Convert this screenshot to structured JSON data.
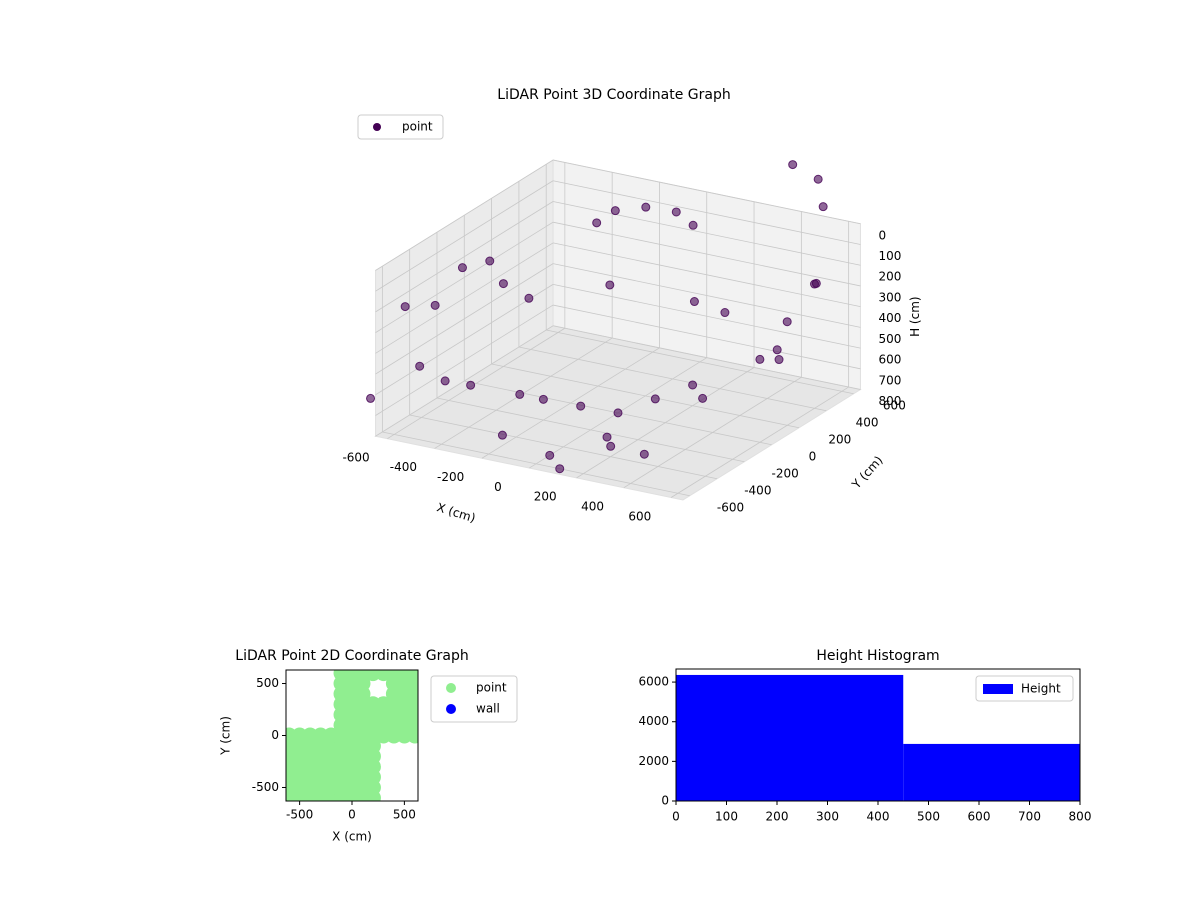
{
  "chart_data": [
    {
      "type": "scatter3d",
      "title": "LiDAR Point 3D Coordinate Graph",
      "xlabel": "X (cm)",
      "ylabel": "Y (cm)",
      "zlabel": "H (cm)",
      "xlim": [
        -650,
        650
      ],
      "ylim": [
        -650,
        650
      ],
      "zlim": [
        800,
        0
      ],
      "xticks": [
        -600,
        -400,
        -200,
        0,
        200,
        400,
        600
      ],
      "yticks": [
        -600,
        -400,
        -200,
        0,
        200,
        400,
        600
      ],
      "zticks": [
        0,
        100,
        200,
        300,
        400,
        500,
        600,
        700,
        800
      ],
      "legend": "upper left",
      "series": [
        {
          "name": "point",
          "color": "#440154",
          "x": [
            -600,
            -600,
            -600,
            -550,
            -500,
            -450,
            -600,
            -550,
            600,
            600,
            550,
            500,
            600,
            450,
            0,
            -100,
            100,
            -200,
            200,
            -300,
            300,
            -300,
            -200,
            -100,
            -350,
            0,
            300,
            400,
            100,
            0,
            200,
            -200,
            500,
            550,
            450,
            -900,
            -700,
            150,
            250,
            -150
          ],
          "y": [
            -300,
            -100,
            100,
            -500,
            -400,
            -300,
            200,
            300,
            400,
            200,
            500,
            300,
            0,
            400,
            0,
            -100,
            100,
            -200,
            200,
            -200,
            100,
            500,
            550,
            600,
            450,
            550,
            -600,
            -500,
            -600,
            -500,
            -400,
            -500,
            600,
            550,
            500,
            0,
            -600,
            300,
            350,
            200
          ],
          "z": [
            300,
            200,
            250,
            500,
            600,
            650,
            400,
            500,
            200,
            300,
            250,
            500,
            400,
            600,
            800,
            750,
            750,
            700,
            700,
            700,
            700,
            100,
            80,
            100,
            150,
            120,
            600,
            700,
            800,
            800,
            750,
            750,
            -200,
            -100,
            -300,
            500,
            650,
            350,
            400,
            300
          ]
        }
      ]
    },
    {
      "type": "scatter",
      "title": "LiDAR Point 2D Coordinate Graph",
      "xlabel": "X (cm)",
      "ylabel": "Y (cm)",
      "xlim": [
        -630,
        630
      ],
      "ylim": [
        -630,
        630
      ],
      "xticks": [
        -500,
        0,
        500
      ],
      "yticks": [
        -500,
        0,
        500
      ],
      "legend": "outside right",
      "series": [
        {
          "name": "point",
          "color": "#90ee90",
          "x": [
            -600,
            -500,
            -400,
            -300,
            -200,
            -100,
            0,
            100,
            200,
            -600,
            -500,
            -400,
            -300,
            -200,
            -100,
            0,
            100,
            200,
            -600,
            -500,
            -400,
            -300,
            -200,
            -100,
            0,
            100,
            200,
            -600,
            -500,
            -400,
            -300,
            -200,
            -100,
            0,
            100,
            200,
            -600,
            -500,
            -400,
            -300,
            -200,
            -100,
            0,
            100,
            200,
            -600,
            -500,
            -400,
            -300,
            -200,
            -100,
            0,
            100,
            200,
            -600,
            -500,
            -400,
            -300,
            -200,
            -100,
            0,
            100,
            200,
            300,
            400,
            500,
            600,
            -100,
            0,
            100,
            200,
            300,
            400,
            500,
            600,
            -100,
            0,
            100,
            200,
            300,
            400,
            500,
            600,
            -100,
            0,
            100,
            200,
            300,
            400,
            500,
            600,
            -100,
            0,
            100,
            400,
            500,
            600,
            -100,
            0,
            100,
            400,
            500,
            600,
            -100,
            0,
            100,
            200,
            300,
            400,
            500,
            600
          ],
          "y": [
            -600,
            -600,
            -600,
            -600,
            -600,
            -600,
            -600,
            -600,
            -600,
            -500,
            -500,
            -500,
            -500,
            -500,
            -500,
            -500,
            -500,
            -500,
            -400,
            -400,
            -400,
            -400,
            -400,
            -400,
            -400,
            -400,
            -400,
            -300,
            -300,
            -300,
            -300,
            -300,
            -300,
            -300,
            -300,
            -300,
            -200,
            -200,
            -200,
            -200,
            -200,
            -200,
            -200,
            -200,
            -200,
            -100,
            -100,
            -100,
            -100,
            -100,
            -100,
            -100,
            -100,
            -100,
            0,
            0,
            0,
            0,
            0,
            0,
            0,
            0,
            0,
            0,
            0,
            0,
            0,
            100,
            100,
            100,
            100,
            100,
            100,
            100,
            100,
            200,
            200,
            200,
            200,
            200,
            200,
            200,
            200,
            300,
            300,
            300,
            300,
            300,
            300,
            300,
            300,
            400,
            400,
            400,
            400,
            400,
            400,
            500,
            500,
            500,
            500,
            500,
            500,
            600,
            600,
            600,
            600,
            600,
            600,
            600,
            600
          ]
        },
        {
          "name": "wall",
          "color": "#0000ff",
          "x": [],
          "y": []
        }
      ]
    },
    {
      "type": "histogram",
      "title": "Height Histogram",
      "bins": [
        0,
        450,
        800
      ],
      "xlim": [
        0,
        800
      ],
      "ylim": [
        0,
        6660
      ],
      "xticks": [
        0,
        100,
        200,
        300,
        400,
        500,
        600,
        700,
        800
      ],
      "yticks": [
        0,
        2000,
        4000,
        6000
      ],
      "legend": "upper right",
      "series": [
        {
          "name": "Height",
          "color": "#0000ff",
          "values": [
            6360,
            2880
          ]
        }
      ]
    }
  ]
}
